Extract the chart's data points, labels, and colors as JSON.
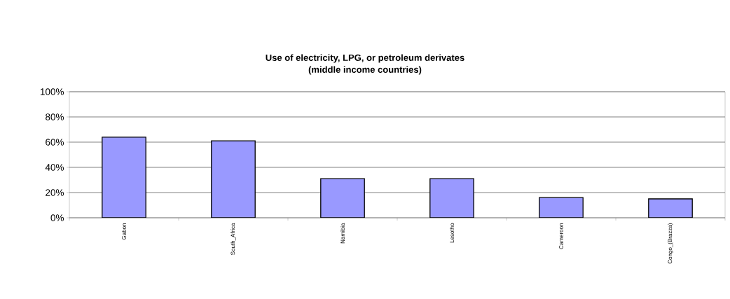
{
  "chart_data": {
    "type": "bar",
    "title": "Use of electricity, LPG, or petroleum derivates",
    "subtitle": "(middle income countries)",
    "categories": [
      "Gabon",
      "South_Africa",
      "Namibia",
      "Lesotho",
      "Cameroon",
      "Congo_(Brazza)"
    ],
    "values": [
      64,
      61,
      31,
      31,
      16,
      15
    ],
    "color": "#9999ff",
    "ylim": [
      0,
      100
    ],
    "yticks": [
      {
        "value": 0,
        "label": "0%"
      },
      {
        "value": 20,
        "label": "20%"
      },
      {
        "value": 40,
        "label": "40%"
      },
      {
        "value": 60,
        "label": "60%"
      },
      {
        "value": 80,
        "label": "80%"
      },
      {
        "value": 100,
        "label": "100%"
      }
    ],
    "grid": "y"
  }
}
